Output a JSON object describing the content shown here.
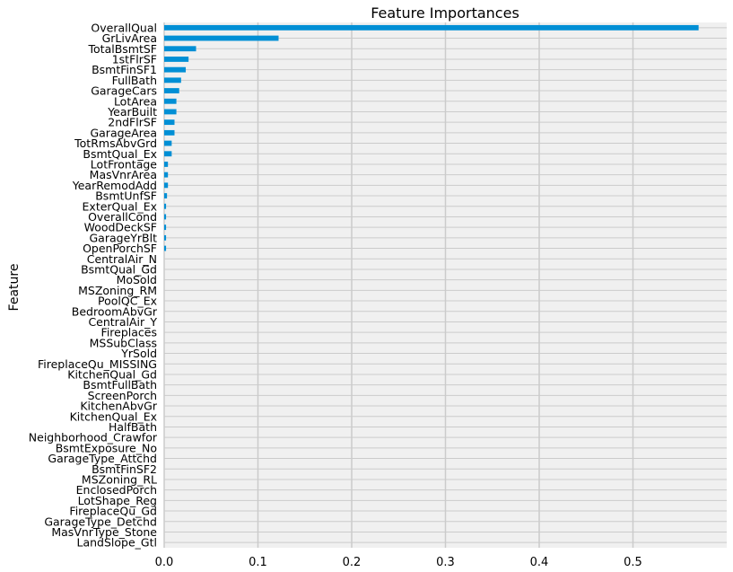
{
  "chart_data": {
    "type": "bar",
    "orientation": "horizontal",
    "title": "Feature Importances",
    "xlabel": "",
    "ylabel": "Feature",
    "xlim": [
      0,
      0.6
    ],
    "xticks": [
      0.0,
      0.1,
      0.2,
      0.3,
      0.4,
      0.5
    ],
    "xtick_labels": [
      "0.0",
      "0.1",
      "0.2",
      "0.3",
      "0.4",
      "0.5"
    ],
    "grid": true,
    "colors": {
      "bar": "#008fd5",
      "plot_bg": "#f0f0f0",
      "grid": "#cbcbcb"
    },
    "categories": [
      "OverallQual",
      "GrLivArea",
      "TotalBsmtSF",
      "1stFlrSF",
      "BsmtFinSF1",
      "FullBath",
      "GarageCars",
      "LotArea",
      "YearBuilt",
      "2ndFlrSF",
      "GarageArea",
      "TotRmsAbvGrd",
      "BsmtQual_Ex",
      "LotFrontage",
      "MasVnrArea",
      "YearRemodAdd",
      "BsmtUnfSF",
      "ExterQual_Ex",
      "OverallCond",
      "WoodDeckSF",
      "GarageYrBlt",
      "OpenPorchSF",
      "CentralAir_N",
      "BsmtQual_Gd",
      "MoSold",
      "MSZoning_RM",
      "PoolQC_Ex",
      "BedroomAbvGr",
      "CentralAir_Y",
      "Fireplaces",
      "MSSubClass",
      "YrSold",
      "FireplaceQu_MISSING",
      "KitchenQual_Gd",
      "BsmtFullBath",
      "ScreenPorch",
      "KitchenAbvGr",
      "KitchenQual_Ex",
      "HalfBath",
      "Neighborhood_Crawfor",
      "BsmtExposure_No",
      "GarageType_Attchd",
      "BsmtFinSF2",
      "MSZoning_RL",
      "EnclosedPorch",
      "LotShape_Reg",
      "FireplaceQu_Gd",
      "GarageType_Detchd",
      "MasVnrType_Stone",
      "LandSlope_Gtl"
    ],
    "values": [
      0.57,
      0.122,
      0.034,
      0.026,
      0.023,
      0.018,
      0.016,
      0.013,
      0.013,
      0.011,
      0.011,
      0.008,
      0.008,
      0.004,
      0.004,
      0.004,
      0.003,
      0.002,
      0.002,
      0.002,
      0.002,
      0.002,
      0.0,
      0.0,
      0.0,
      0.0,
      0.0,
      0.0,
      0.0,
      0.0,
      0.0,
      0.0,
      0.0,
      0.0,
      0.0,
      0.0,
      0.0,
      0.0,
      0.0,
      0.0,
      0.0,
      0.0,
      0.0,
      0.0,
      0.0,
      0.0,
      0.0,
      0.0,
      0.0,
      0.0
    ]
  }
}
